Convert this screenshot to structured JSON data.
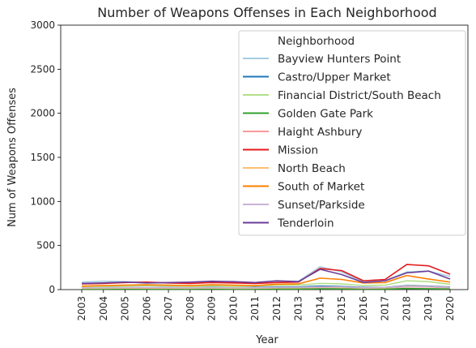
{
  "chart_data": {
    "type": "line",
    "title": "Number of Weapons Offenses in Each Neighborhood",
    "xlabel": "Year",
    "ylabel": "Num of Weapons Offenses",
    "ylim": [
      0,
      3000
    ],
    "yticks": [
      0,
      500,
      1000,
      1500,
      2000,
      2500,
      3000
    ],
    "x": [
      2003,
      2004,
      2005,
      2006,
      2007,
      2008,
      2009,
      2010,
      2011,
      2012,
      2013,
      2014,
      2015,
      2016,
      2017,
      2018,
      2019,
      2020
    ],
    "grid": false,
    "legend": {
      "title": "Neighborhood",
      "placement": "top-right"
    },
    "series": [
      {
        "name": "Bayview Hunters Point",
        "color": "#a6cee3",
        "values": [
          85,
          95,
          90,
          80,
          75,
          80,
          90,
          85,
          80,
          95,
          95,
          260,
          200,
          90,
          100,
          200,
          210,
          150
        ]
      },
      {
        "name": "Castro/Upper Market",
        "color": "#1f78b4",
        "values": [
          20,
          25,
          20,
          25,
          22,
          20,
          25,
          20,
          25,
          30,
          30,
          40,
          35,
          25,
          25,
          45,
          40,
          30
        ]
      },
      {
        "name": "Financial District/South Beach",
        "color": "#b2df8a",
        "values": [
          30,
          35,
          40,
          45,
          40,
          35,
          40,
          35,
          40,
          50,
          50,
          70,
          65,
          45,
          50,
          100,
          90,
          60
        ]
      },
      {
        "name": "Golden Gate Park",
        "color": "#33a02c",
        "values": [
          5,
          5,
          6,
          5,
          5,
          5,
          6,
          5,
          5,
          6,
          6,
          10,
          9,
          6,
          6,
          12,
          10,
          8
        ]
      },
      {
        "name": "Haight Ashbury",
        "color": "#fb9a99",
        "values": [
          15,
          15,
          18,
          15,
          15,
          15,
          18,
          15,
          15,
          20,
          20,
          25,
          25,
          15,
          20,
          30,
          30,
          20
        ]
      },
      {
        "name": "Mission",
        "color": "#e31a1c",
        "values": [
          65,
          70,
          80,
          85,
          75,
          70,
          80,
          75,
          70,
          80,
          85,
          240,
          215,
          100,
          115,
          285,
          270,
          175
        ]
      },
      {
        "name": "North Beach",
        "color": "#fdbf6f",
        "values": [
          15,
          15,
          18,
          20,
          18,
          15,
          18,
          15,
          15,
          20,
          20,
          30,
          25,
          20,
          20,
          40,
          35,
          25
        ]
      },
      {
        "name": "South of Market",
        "color": "#ff7f00",
        "values": [
          40,
          45,
          50,
          55,
          50,
          45,
          55,
          50,
          45,
          60,
          65,
          130,
          115,
          75,
          80,
          160,
          120,
          85
        ]
      },
      {
        "name": "Sunset/Parkside",
        "color": "#cab2d6",
        "values": [
          20,
          20,
          22,
          25,
          22,
          20,
          22,
          20,
          20,
          25,
          25,
          30,
          30,
          20,
          25,
          35,
          35,
          25
        ]
      },
      {
        "name": "Tenderloin",
        "color": "#6a3d9a",
        "values": [
          70,
          75,
          85,
          75,
          80,
          85,
          95,
          90,
          80,
          100,
          90,
          230,
          170,
          80,
          100,
          190,
          210,
          120
        ]
      }
    ]
  }
}
